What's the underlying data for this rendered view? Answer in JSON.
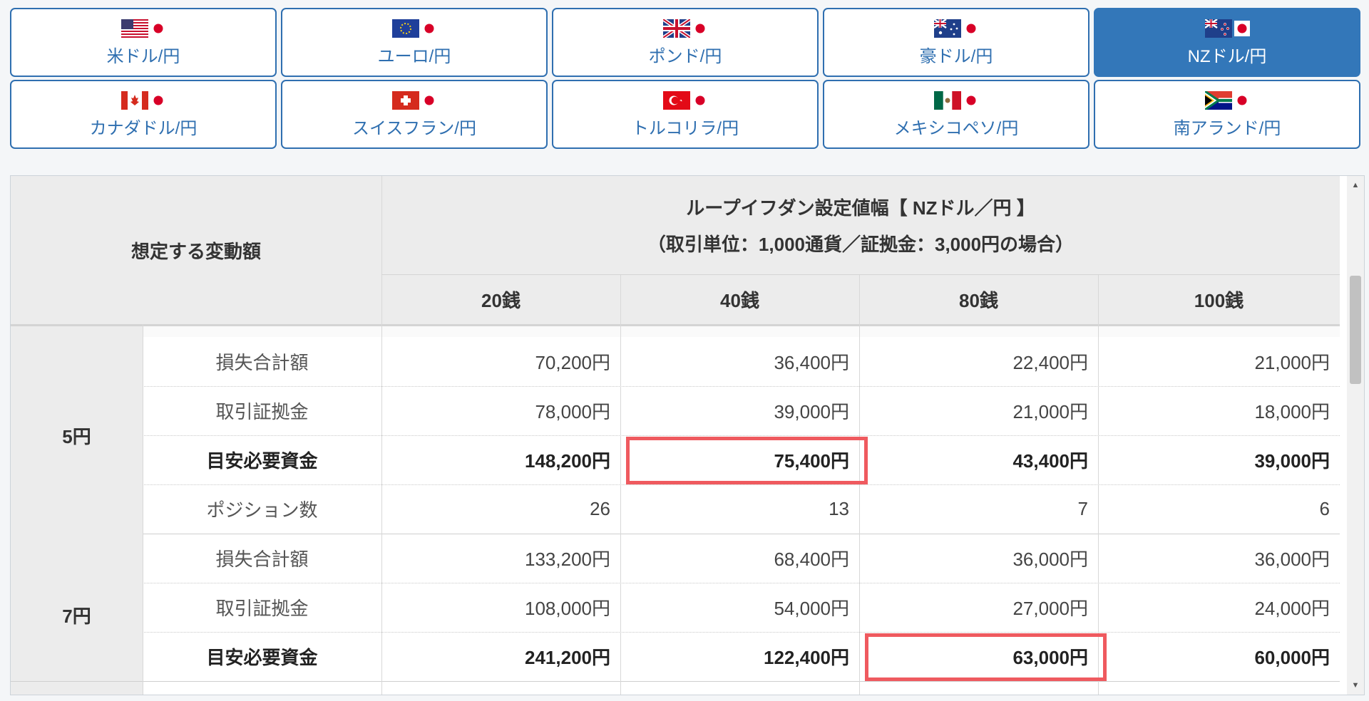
{
  "currency_tabs": [
    {
      "label": "米ドル/円",
      "flag": "us-flag-icon",
      "active": false
    },
    {
      "label": "ユーロ/円",
      "flag": "eu-flag-icon",
      "active": false
    },
    {
      "label": "ポンド/円",
      "flag": "uk-flag-icon",
      "active": false
    },
    {
      "label": "豪ドル/円",
      "flag": "au-flag-icon",
      "active": false
    },
    {
      "label": "NZドル/円",
      "flag": "nz-flag-icon",
      "active": true
    },
    {
      "label": "カナダドル/円",
      "flag": "ca-flag-icon",
      "active": false
    },
    {
      "label": "スイスフラン/円",
      "flag": "ch-flag-icon",
      "active": false
    },
    {
      "label": "トルコリラ/円",
      "flag": "tr-flag-icon",
      "active": false
    },
    {
      "label": "メキシコペソ/円",
      "flag": "mx-flag-icon",
      "active": false
    },
    {
      "label": "南アランド/円",
      "flag": "za-flag-icon",
      "active": false
    }
  ],
  "table": {
    "corner_header": "想定する変動額",
    "title": "ループイフダン設定値幅【 NZドル／円 】",
    "subtitle": "（取引単位：1,000通貨／証拠金：3,000円の場合）",
    "columns": [
      "20銭",
      "40銭",
      "80銭",
      "100銭"
    ],
    "groups": [
      {
        "label": "5円",
        "rows": [
          {
            "name": "損失合計額",
            "bold": false,
            "values": [
              "70,200円",
              "36,400円",
              "22,400円",
              "21,000円"
            ]
          },
          {
            "name": "取引証拠金",
            "bold": false,
            "values": [
              "78,000円",
              "39,000円",
              "21,000円",
              "18,000円"
            ]
          },
          {
            "name": "目安必要資金",
            "bold": true,
            "values": [
              "148,200円",
              "75,400円",
              "43,400円",
              "39,000円"
            ]
          },
          {
            "name": "ポジション数",
            "bold": false,
            "values": [
              "26",
              "13",
              "7",
              "6"
            ]
          }
        ]
      },
      {
        "label": "7円",
        "rows": [
          {
            "name": "損失合計額",
            "bold": false,
            "values": [
              "133,200円",
              "68,400円",
              "36,000円",
              "36,000円"
            ]
          },
          {
            "name": "取引証拠金",
            "bold": false,
            "values": [
              "108,000円",
              "54,000円",
              "27,000円",
              "24,000円"
            ]
          },
          {
            "name": "目安必要資金",
            "bold": true,
            "values": [
              "241,200円",
              "122,400円",
              "63,000円",
              "60,000円"
            ]
          }
        ]
      }
    ],
    "highlight_color": "#ef5a5f"
  },
  "scrollbar": {
    "up_glyph": "▲",
    "down_glyph": "▼"
  }
}
